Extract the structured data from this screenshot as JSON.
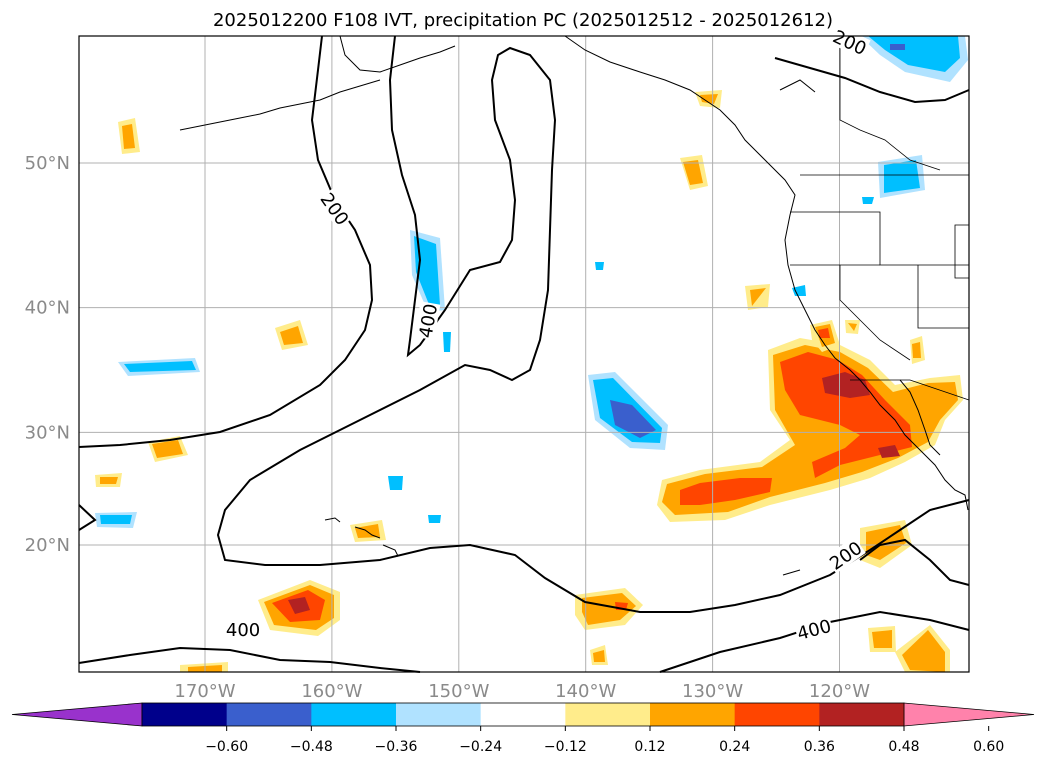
{
  "title": "2025012200 F108 IVT, precipitation PC (2025012512 - 2025012612)",
  "map": {
    "lat_ticks": [
      {
        "label": "50°N",
        "lat": 50
      },
      {
        "label": "40°N",
        "lat": 40
      },
      {
        "label": "30°N",
        "lat": 30
      },
      {
        "label": "20°N",
        "lat": 20
      }
    ],
    "lon_ticks": [
      {
        "label": "170°W",
        "lon": -170
      },
      {
        "label": "160°W",
        "lon": -160
      },
      {
        "label": "150°W",
        "lon": -150
      },
      {
        "label": "140°W",
        "lon": -140
      },
      {
        "label": "130°W",
        "lon": -130
      },
      {
        "label": "120°W",
        "lon": -120
      }
    ],
    "ivt_contour_labels": [
      {
        "text": "200",
        "lon": -159.8,
        "lat": 47.0,
        "rotate": 55
      },
      {
        "text": "400",
        "lon": -152.4,
        "lat": 39.0,
        "rotate": -80
      },
      {
        "text": "200",
        "lon": -119.2,
        "lat": 57.0,
        "rotate": 25
      },
      {
        "text": "200",
        "lon": -119.5,
        "lat": 19.0,
        "rotate": -35
      },
      {
        "text": "400",
        "lon": -122.0,
        "lat": 12.0,
        "rotate": -15
      },
      {
        "text": "400",
        "lon": -167.0,
        "lat": 12.0,
        "rotate": 0
      }
    ]
  },
  "colorbar": {
    "ticks": [
      "−0.60",
      "−0.48",
      "−0.36",
      "−0.24",
      "−0.12",
      "0.12",
      "0.24",
      "0.36",
      "0.48",
      "0.60"
    ],
    "colors": [
      "#9932cc",
      "#00008b",
      "#3a5fcd",
      "#00bfff",
      "#b0e2ff",
      "#ffffff",
      "#ffec8b",
      "#ffa500",
      "#ff4500",
      "#b22222",
      "#ff82ab"
    ]
  },
  "colors": {
    "frame": "#000000",
    "grid": "#b0b0b0",
    "coast": "#000000"
  }
}
